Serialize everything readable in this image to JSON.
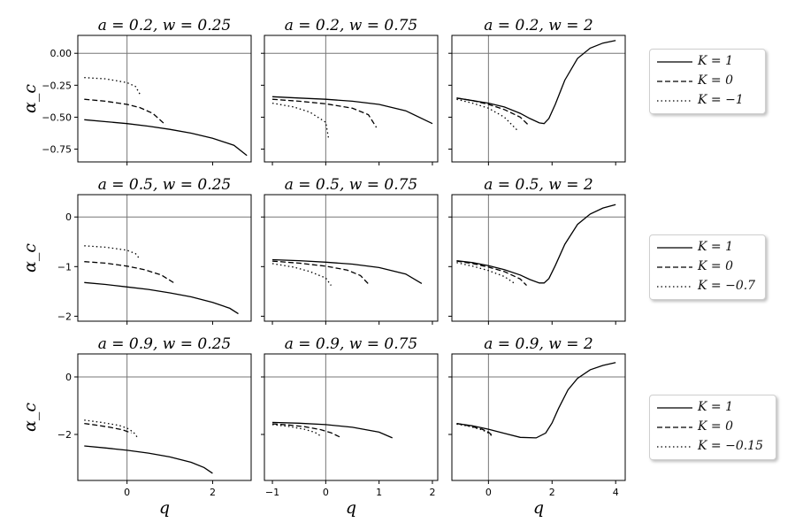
{
  "chart_data": [
    {
      "type": "line",
      "title": "a = 0.2, w = 0.25",
      "ylabel": "α_c",
      "xlabel": "",
      "xlim": [
        -1.15,
        2.9
      ],
      "ylim": [
        -0.85,
        0.14
      ],
      "yticks": [
        -0.75,
        -0.5,
        -0.25,
        0.0
      ],
      "ytick_labels": [
        "−0.75",
        "−0.50",
        "−0.25",
        "0.00"
      ],
      "xticks": [],
      "hline": 0,
      "vline": 0,
      "series": [
        {
          "name": "K = 1",
          "style": "solid",
          "x": [
            -1,
            -0.5,
            0,
            0.5,
            1,
            1.5,
            2,
            2.5,
            2.8
          ],
          "y": [
            -0.52,
            -0.535,
            -0.55,
            -0.57,
            -0.595,
            -0.625,
            -0.665,
            -0.72,
            -0.8
          ]
        },
        {
          "name": "K = 0",
          "style": "dashed",
          "x": [
            -1,
            -0.5,
            0,
            0.3,
            0.6,
            0.9
          ],
          "y": [
            -0.36,
            -0.375,
            -0.4,
            -0.425,
            -0.47,
            -0.56
          ]
        },
        {
          "name": "K = -1",
          "style": "dotted",
          "x": [
            -1,
            -0.5,
            0,
            0.2,
            0.3
          ],
          "y": [
            -0.19,
            -0.2,
            -0.23,
            -0.26,
            -0.32
          ]
        }
      ]
    },
    {
      "type": "line",
      "title": "a = 0.2, w = 0.75",
      "ylabel": "",
      "xlabel": "",
      "xlim": [
        -1.15,
        2.1
      ],
      "ylim": [
        -0.85,
        0.14
      ],
      "yticks": [],
      "xticks": [],
      "hline": 0,
      "vline": 0,
      "series": [
        {
          "name": "K = 1",
          "style": "solid",
          "x": [
            -1,
            -0.5,
            0,
            0.5,
            1,
            1.5,
            2
          ],
          "y": [
            -0.34,
            -0.35,
            -0.36,
            -0.375,
            -0.4,
            -0.45,
            -0.55
          ]
        },
        {
          "name": "K = 0",
          "style": "dashed",
          "x": [
            -1,
            -0.5,
            0,
            0.5,
            0.8,
            0.95
          ],
          "y": [
            -0.36,
            -0.375,
            -0.395,
            -0.43,
            -0.48,
            -0.58
          ]
        },
        {
          "name": "K = -1",
          "style": "dotted",
          "x": [
            -1,
            -0.6,
            -0.3,
            0,
            0.05
          ],
          "y": [
            -0.39,
            -0.42,
            -0.46,
            -0.54,
            -0.66
          ]
        }
      ]
    },
    {
      "type": "line",
      "title": "a = 0.2, w = 2",
      "ylabel": "",
      "xlabel": "",
      "xlim": [
        -1.15,
        4.3
      ],
      "ylim": [
        -0.85,
        0.14
      ],
      "yticks": [],
      "xticks": [],
      "hline": 0,
      "vline": 0,
      "series": [
        {
          "name": "K = 1",
          "style": "solid",
          "x": [
            -1,
            -0.5,
            0,
            0.5,
            1,
            1.3,
            1.6,
            1.75,
            1.9,
            2.1,
            2.4,
            2.8,
            3.2,
            3.6,
            4
          ],
          "y": [
            -0.35,
            -0.37,
            -0.39,
            -0.42,
            -0.47,
            -0.51,
            -0.545,
            -0.55,
            -0.51,
            -0.4,
            -0.21,
            -0.04,
            0.04,
            0.08,
            0.1
          ]
        },
        {
          "name": "K = 0",
          "style": "dashed",
          "x": [
            -1,
            -0.5,
            0,
            0.5,
            1,
            1.25
          ],
          "y": [
            -0.35,
            -0.37,
            -0.4,
            -0.44,
            -0.5,
            -0.56
          ]
        },
        {
          "name": "K = -1",
          "style": "dotted",
          "x": [
            -1,
            -0.5,
            0,
            0.5,
            0.9
          ],
          "y": [
            -0.36,
            -0.39,
            -0.43,
            -0.5,
            -0.6
          ]
        }
      ]
    },
    {
      "type": "line",
      "title": "a = 0.5, w = 0.25",
      "ylabel": "α_c",
      "xlabel": "",
      "xlim": [
        -1.15,
        2.9
      ],
      "ylim": [
        -2.1,
        0.45
      ],
      "yticks": [
        -2,
        -1,
        0
      ],
      "ytick_labels": [
        "−2",
        "−1",
        "0"
      ],
      "xticks": [],
      "hline": 0,
      "vline": 0,
      "series": [
        {
          "name": "K = 1",
          "style": "solid",
          "x": [
            -1,
            -0.5,
            0,
            0.5,
            1,
            1.5,
            2,
            2.4,
            2.6
          ],
          "y": [
            -1.32,
            -1.36,
            -1.41,
            -1.46,
            -1.53,
            -1.61,
            -1.72,
            -1.84,
            -1.95
          ]
        },
        {
          "name": "K = 0",
          "style": "dashed",
          "x": [
            -1,
            -0.5,
            0,
            0.4,
            0.8,
            1.1
          ],
          "y": [
            -0.9,
            -0.93,
            -0.99,
            -1.06,
            -1.17,
            -1.33
          ]
        },
        {
          "name": "K = -0.7",
          "style": "dotted",
          "x": [
            -1,
            -0.5,
            0,
            0.2,
            0.3
          ],
          "y": [
            -0.58,
            -0.61,
            -0.67,
            -0.74,
            -0.85
          ]
        }
      ]
    },
    {
      "type": "line",
      "title": "a = 0.5, w = 0.75",
      "ylabel": "",
      "xlabel": "",
      "xlim": [
        -1.15,
        2.1
      ],
      "ylim": [
        -2.1,
        0.45
      ],
      "yticks": [],
      "xticks": [],
      "hline": 0,
      "vline": 0,
      "series": [
        {
          "name": "K = 1",
          "style": "solid",
          "x": [
            -1,
            -0.5,
            0,
            0.5,
            1,
            1.5,
            1.8
          ],
          "y": [
            -0.86,
            -0.88,
            -0.91,
            -0.95,
            -1.02,
            -1.15,
            -1.34
          ]
        },
        {
          "name": "K = 0",
          "style": "dashed",
          "x": [
            -1,
            -0.5,
            0,
            0.4,
            0.65,
            0.8
          ],
          "y": [
            -0.89,
            -0.93,
            -0.99,
            -1.07,
            -1.18,
            -1.35
          ]
        },
        {
          "name": "K = -0.7",
          "style": "dotted",
          "x": [
            -1,
            -0.6,
            -0.3,
            0,
            0.1
          ],
          "y": [
            -0.94,
            -1.01,
            -1.1,
            -1.23,
            -1.38
          ]
        }
      ]
    },
    {
      "type": "line",
      "title": "a = 0.5, w = 2",
      "ylabel": "",
      "xlabel": "",
      "xlim": [
        -1.15,
        4.3
      ],
      "ylim": [
        -2.1,
        0.45
      ],
      "yticks": [],
      "xticks": [],
      "hline": 0,
      "vline": 0,
      "series": [
        {
          "name": "K = 1",
          "style": "solid",
          "x": [
            -1,
            -0.5,
            0,
            0.5,
            1,
            1.3,
            1.6,
            1.75,
            1.9,
            2.1,
            2.4,
            2.8,
            3.2,
            3.6,
            4
          ],
          "y": [
            -0.88,
            -0.92,
            -0.98,
            -1.06,
            -1.17,
            -1.26,
            -1.33,
            -1.33,
            -1.24,
            -0.98,
            -0.55,
            -0.15,
            0.06,
            0.18,
            0.25
          ]
        },
        {
          "name": "K = 0",
          "style": "dashed",
          "x": [
            -1,
            -0.5,
            0,
            0.5,
            1,
            1.2
          ],
          "y": [
            -0.89,
            -0.94,
            -1.01,
            -1.1,
            -1.25,
            -1.38
          ]
        },
        {
          "name": "K = -0.7",
          "style": "dotted",
          "x": [
            -1,
            -0.5,
            0,
            0.5,
            0.8
          ],
          "y": [
            -0.92,
            -0.99,
            -1.08,
            -1.2,
            -1.33
          ]
        }
      ]
    },
    {
      "type": "line",
      "title": "a = 0.9, w = 0.25",
      "ylabel": "α_c",
      "xlabel": "q",
      "xlim": [
        -1.15,
        2.9
      ],
      "ylim": [
        -3.6,
        0.8
      ],
      "yticks": [
        -2,
        0
      ],
      "ytick_labels": [
        "−2",
        "0"
      ],
      "xticks": [
        0,
        2
      ],
      "xtick_labels": [
        "0",
        "2"
      ],
      "hline": 0,
      "vline": 0,
      "series": [
        {
          "name": "K = 1",
          "style": "solid",
          "x": [
            -1,
            -0.5,
            0,
            0.5,
            1,
            1.5,
            1.8,
            2
          ],
          "y": [
            -2.4,
            -2.47,
            -2.55,
            -2.65,
            -2.78,
            -2.97,
            -3.15,
            -3.35
          ]
        },
        {
          "name": "K = 0",
          "style": "dashed",
          "x": [
            -1,
            -0.7,
            -0.4,
            -0.1,
            0.1
          ],
          "y": [
            -1.62,
            -1.68,
            -1.75,
            -1.84,
            -1.95
          ]
        },
        {
          "name": "K = -0.15",
          "style": "dotted",
          "x": [
            -1,
            -0.6,
            -0.2,
            0,
            0.15,
            0.25
          ],
          "y": [
            -1.5,
            -1.58,
            -1.68,
            -1.78,
            -1.92,
            -2.12
          ]
        }
      ]
    },
    {
      "type": "line",
      "title": "a = 0.9, w = 0.75",
      "ylabel": "",
      "xlabel": "q",
      "xlim": [
        -1.15,
        2.1
      ],
      "ylim": [
        -3.6,
        0.8
      ],
      "yticks": [],
      "xticks": [
        -1,
        0,
        1,
        2
      ],
      "xtick_labels": [
        "−1",
        "0",
        "1",
        "2"
      ],
      "hline": 0,
      "vline": 0,
      "series": [
        {
          "name": "K = 1",
          "style": "solid",
          "x": [
            -1,
            -0.5,
            0,
            0.5,
            1,
            1.25
          ],
          "y": [
            -1.58,
            -1.61,
            -1.66,
            -1.75,
            -1.92,
            -2.12
          ]
        },
        {
          "name": "K = 0",
          "style": "dashed",
          "x": [
            -1,
            -0.7,
            -0.4,
            -0.1,
            0.1,
            0.3
          ],
          "y": [
            -1.63,
            -1.67,
            -1.73,
            -1.83,
            -1.94,
            -2.12
          ]
        },
        {
          "name": "K = -0.15",
          "style": "dotted",
          "x": [
            -1,
            -0.7,
            -0.4,
            -0.2,
            -0.1
          ],
          "y": [
            -1.66,
            -1.72,
            -1.82,
            -1.93,
            -2.05
          ]
        }
      ]
    },
    {
      "type": "line",
      "title": "a = 0.9, w = 2",
      "ylabel": "",
      "xlabel": "q",
      "xlim": [
        -1.15,
        4.3
      ],
      "ylim": [
        -3.6,
        0.8
      ],
      "yticks": [],
      "xticks": [
        0,
        2,
        4
      ],
      "xtick_labels": [
        "0",
        "2",
        "4"
      ],
      "hline": 0,
      "vline": 0,
      "series": [
        {
          "name": "K = 1",
          "style": "solid",
          "x": [
            -1,
            -0.5,
            0,
            0.5,
            1,
            1.5,
            1.8,
            2,
            2.2,
            2.5,
            2.8,
            3.2,
            3.6,
            4
          ],
          "y": [
            -1.62,
            -1.7,
            -1.82,
            -1.96,
            -2.1,
            -2.12,
            -1.95,
            -1.6,
            -1.1,
            -0.45,
            -0.05,
            0.25,
            0.4,
            0.5
          ]
        },
        {
          "name": "K = 0",
          "style": "dashed",
          "x": [
            -1,
            -0.6,
            -0.2,
            0,
            0.1
          ],
          "y": [
            -1.62,
            -1.7,
            -1.82,
            -1.92,
            -2.02
          ]
        },
        {
          "name": "K = -0.15",
          "style": "dotted",
          "x": [
            -1,
            -0.6,
            -0.2,
            0,
            0.1
          ],
          "y": [
            -1.64,
            -1.72,
            -1.84,
            -1.95,
            -2.05
          ]
        }
      ]
    }
  ],
  "legends": [
    [
      "K = 1",
      "K = 0",
      "K = −1"
    ],
    [
      "K = 1",
      "K = 0",
      "K = −0.7"
    ],
    [
      "K = 1",
      "K = 0",
      "K = −0.15"
    ]
  ]
}
